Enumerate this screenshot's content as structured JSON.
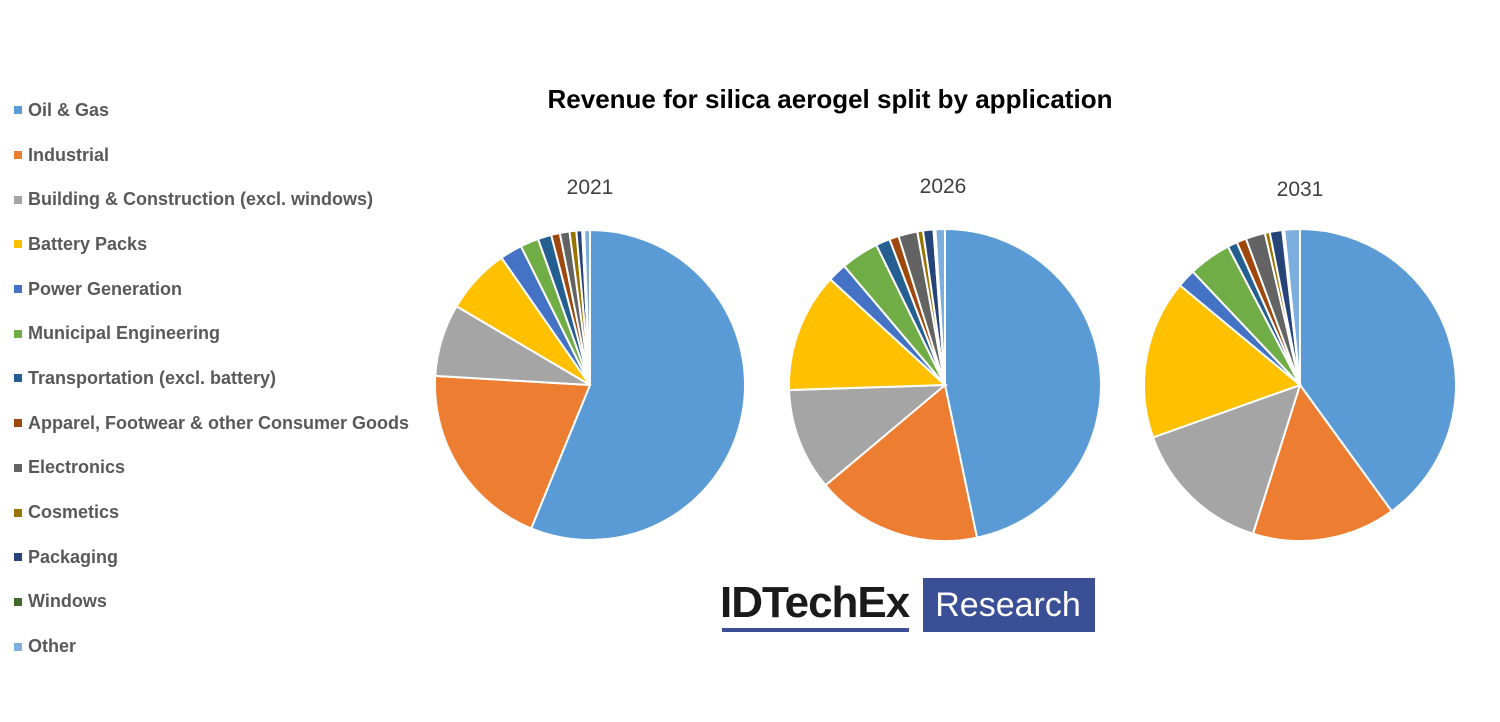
{
  "chart_data": {
    "type": "pie",
    "title": "Revenue for silica aerogel split by application",
    "categories": [
      "Oil & Gas",
      "Industrial",
      "Building & Construction (excl. windows)",
      "Battery Packs",
      "Power Generation",
      "Municipal Engineering",
      "Transportation (excl. battery)",
      "Apparel, Footwear & other Consumer Goods",
      "Electronics",
      "Cosmetics",
      "Packaging",
      "Windows",
      "Other"
    ],
    "colors": [
      "#5b9bd5",
      "#ed7d31",
      "#a5a5a5",
      "#ffc000",
      "#4472c4",
      "#70ad47",
      "#255e91",
      "#9e480e",
      "#636363",
      "#997300",
      "#264478",
      "#43682b",
      "#7cafdd"
    ],
    "legend_position": "left",
    "pies": [
      {
        "year": "2021",
        "values": [
          55.8,
          19.6,
          7.5,
          6.8,
          2.3,
          1.9,
          1.4,
          0.9,
          1.0,
          0.7,
          0.6,
          0.2,
          0.6
        ]
      },
      {
        "year": "2026",
        "values": [
          47.6,
          17.5,
          10.8,
          12.6,
          2.0,
          4.0,
          1.5,
          1.0,
          2.0,
          0.6,
          1.1,
          0.2,
          1.0
        ]
      },
      {
        "year": "2031",
        "values": [
          39.8,
          14.8,
          14.6,
          16.4,
          1.9,
          4.4,
          1.0,
          1.0,
          2.0,
          0.5,
          1.3,
          0.2,
          1.6
        ]
      }
    ]
  },
  "logo": {
    "left_text": "IDTechEx",
    "right_text": "Research"
  }
}
